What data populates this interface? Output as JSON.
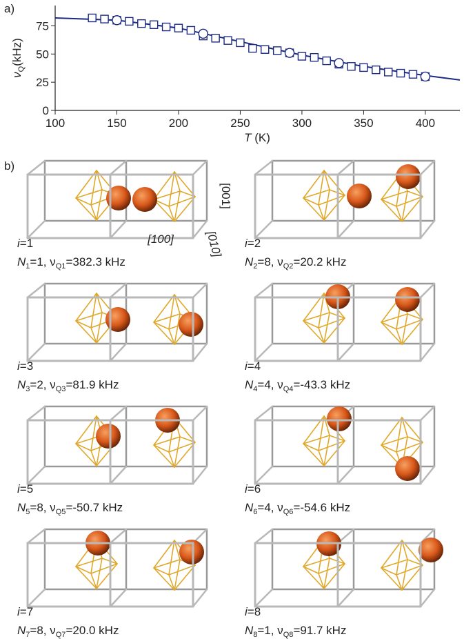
{
  "chart_data": {
    "type": "scatter",
    "xlabel": [
      "T",
      " (K)"
    ],
    "ylabel": [
      "ν",
      "Q",
      "(kHz)"
    ],
    "xlim": [
      100,
      428
    ],
    "ylim": [
      0,
      93
    ],
    "xticks": [
      100,
      150,
      200,
      250,
      300,
      350,
      400
    ],
    "yticks": [
      0,
      25,
      50,
      75
    ],
    "series": [
      {
        "marker": "square",
        "color": "#1c2a80",
        "x": [
          130,
          140,
          150,
          160,
          170,
          180,
          190,
          200,
          210,
          220,
          230,
          240,
          250,
          260,
          270,
          280,
          290,
          300,
          310,
          320,
          330,
          340,
          350,
          360,
          370,
          380,
          390,
          400
        ],
        "values": [
          82,
          81,
          80,
          79,
          77,
          76,
          74,
          73,
          71,
          66,
          64,
          62,
          60,
          55,
          54,
          53,
          51,
          48,
          47,
          44,
          41,
          39,
          38,
          36,
          34,
          33,
          32,
          30
        ]
      },
      {
        "marker": "circle",
        "color": "#1c2a80",
        "x": [
          150,
          220,
          290,
          330,
          400
        ],
        "values": [
          80,
          68,
          51,
          42,
          30
        ]
      },
      {
        "marker": "line",
        "color": "#1c2a80",
        "x": [
          100,
          150,
          200,
          250,
          300,
          350,
          400,
          428
        ],
        "values": [
          82,
          80,
          73,
          61,
          49,
          39,
          31,
          27
        ]
      }
    ]
  },
  "panel_labels": [
    "a)",
    "b)"
  ],
  "directions": [
    "[001]",
    "[100]",
    "[010]"
  ],
  "configurations": [
    {
      "index": [
        "i",
        "=1"
      ],
      "caption": [
        "N",
        "1",
        "=1, ν",
        "Q1",
        "=382.3 kHz"
      ]
    },
    {
      "index": [
        "i",
        "=2"
      ],
      "caption": [
        "N",
        "2",
        "=8, ν",
        "Q2",
        "=20.2 kHz"
      ]
    },
    {
      "index": [
        "i",
        "=3"
      ],
      "caption": [
        "N",
        "3",
        "=2, ν",
        "Q3",
        "=81.9 kHz"
      ]
    },
    {
      "index": [
        "i",
        "=4"
      ],
      "caption": [
        "N",
        "4",
        "=4, ν",
        "Q4",
        "=-43.3 kHz"
      ]
    },
    {
      "index": [
        "i",
        "=5"
      ],
      "caption": [
        "N",
        "5",
        "=8, ν",
        "Q5",
        "=-50.7 kHz"
      ]
    },
    {
      "index": [
        "i",
        "=6"
      ],
      "caption": [
        "N",
        "6",
        "=4, ν",
        "Q6",
        "=-54.6 kHz"
      ]
    },
    {
      "index": [
        "i",
        "=7"
      ],
      "caption": [
        "N",
        "7",
        "=8, ν",
        "Q7",
        "=20.0 kHz"
      ]
    },
    {
      "index": [
        "i",
        "=8"
      ],
      "caption": [
        "N",
        "8",
        "=1, ν",
        "Q8",
        "=91.7 kHz"
      ]
    }
  ]
}
